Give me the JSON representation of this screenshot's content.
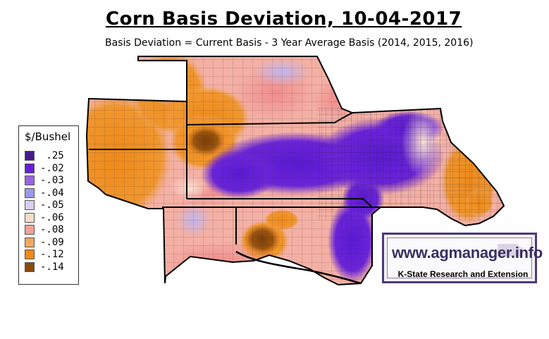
{
  "header": {
    "title": "Corn Basis Deviation, 10-04-2017",
    "subtitle": "Basis Deviation = Current Basis - 3 Year Average Basis (2014, 2015, 2016)"
  },
  "legend": {
    "title": "$/Bushel",
    "items": [
      {
        "label": " .25",
        "color": "#4a1a8c"
      },
      {
        "label": "-.02",
        "color": "#6a1fd6"
      },
      {
        "label": "-.03",
        "color": "#9a62e0"
      },
      {
        "label": "-.04",
        "color": "#9a9ae8"
      },
      {
        "label": "-.05",
        "color": "#d8d0f0"
      },
      {
        "label": "-.06",
        "color": "#f8dcc8"
      },
      {
        "label": "-.08",
        "color": "#f2a298"
      },
      {
        "label": "-.09",
        "color": "#f0a860"
      },
      {
        "label": "-.12",
        "color": "#ee8a1a"
      },
      {
        "label": "-.14",
        "color": "#8a4a0c"
      }
    ]
  },
  "logo": {
    "url": "www.agmanager.info",
    "subtitle": "K-State Research and Extension"
  }
}
